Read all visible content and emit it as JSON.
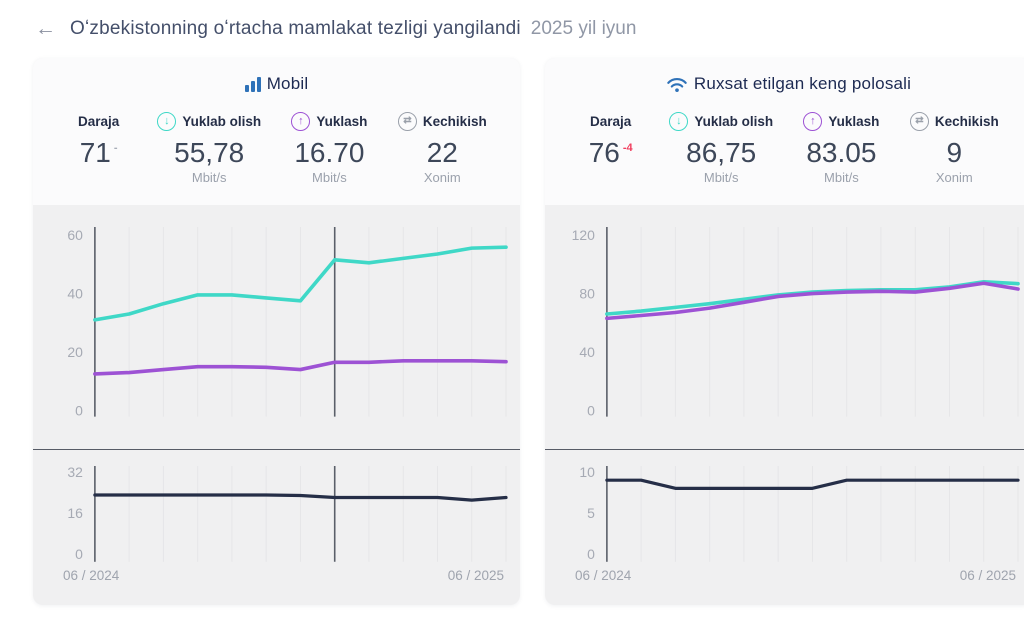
{
  "header": {
    "back_icon": "←",
    "title": "Oʻzbekistonning oʻrtacha mamlakat tezligi yangilandi",
    "date": "2025 yil iyun"
  },
  "colors": {
    "download": "#3fd8c7",
    "upload": "#9d52d4",
    "latency": "#252e47",
    "accent_blue": "#2f72b8",
    "delta_negative": "#f03e5e",
    "delta_neutral": "#a7adb8",
    "marker_line": "#5a5f69",
    "gridline": "#e6e6e8",
    "tick_text": "#a6aab4"
  },
  "icons": {
    "download_glyph": "↓",
    "upload_glyph": "↑",
    "latency_glyph": "⇄"
  },
  "cards": [
    {
      "title": "Mobil",
      "stats": [
        {
          "label": "Daraja",
          "value": "71",
          "delta": "-",
          "unit": ""
        },
        {
          "label": "Yuklab olish",
          "value": "55,78",
          "unit": "Mbit/s"
        },
        {
          "label": "Yuklash",
          "value": "16.70",
          "unit": "Mbit/s"
        },
        {
          "label": "Kechikish",
          "value": "22",
          "unit": "Xonim"
        }
      ],
      "x_start": "06 / 2024",
      "x_end": "06 / 2025"
    },
    {
      "title": "Ruxsat etilgan keng polosali",
      "stats": [
        {
          "label": "Daraja",
          "value": "76",
          "delta": "-4",
          "unit": ""
        },
        {
          "label": "Yuklab olish",
          "value": "86,75",
          "unit": "Mbit/s"
        },
        {
          "label": "Yuklash",
          "value": "83.05",
          "unit": "Mbit/s"
        },
        {
          "label": "Kechikish",
          "value": "9",
          "unit": "Xonim"
        }
      ],
      "x_start": "06 / 2024",
      "x_end": "06 / 2025"
    }
  ],
  "chart_data": [
    {
      "type": "line",
      "card": "Mobil",
      "x_start_label": "06 / 2024",
      "x_end_label": "06 / 2025",
      "months": 13,
      "panels": [
        {
          "name": "speed",
          "ylim": [
            0,
            60
          ],
          "yticks": [
            60,
            40,
            20,
            0
          ],
          "markers": [
            0,
            7
          ],
          "series": [
            {
              "name": "Yuklab olish (Mbit/s)",
              "color": "download",
              "values": [
                31,
                33,
                36.5,
                39.5,
                39.5,
                38.5,
                37.5,
                51.5,
                50.5,
                52,
                53.5,
                55.5,
                55.8
              ]
            },
            {
              "name": "Yuklash (Mbit/s)",
              "color": "upload",
              "values": [
                12.5,
                13,
                14,
                15,
                15,
                14.8,
                14,
                16.5,
                16.5,
                17,
                17,
                17,
                16.7
              ]
            }
          ]
        },
        {
          "name": "latency",
          "ylim": [
            0,
            32
          ],
          "yticks": [
            32,
            16,
            0
          ],
          "markers": [
            0,
            7
          ],
          "series": [
            {
              "name": "Kechikish (Xonim)",
              "color": "latency",
              "values": [
                23,
                23,
                23,
                23,
                23,
                23,
                22.8,
                22,
                22,
                22,
                22,
                21,
                22
              ]
            }
          ]
        }
      ]
    },
    {
      "type": "line",
      "card": "Ruxsat etilgan keng polosali",
      "x_start_label": "06 / 2024",
      "x_end_label": "06 / 2025",
      "months": 13,
      "panels": [
        {
          "name": "speed",
          "ylim": [
            0,
            120
          ],
          "yticks": [
            120,
            80,
            40,
            0
          ],
          "markers": [
            0
          ],
          "series": [
            {
              "name": "Yuklab olish (Mbit/s)",
              "color": "download",
              "values": [
                66,
                68,
                70.5,
                73,
                76,
                79,
                81,
                82,
                82.5,
                82.5,
                84.5,
                88,
                86.75
              ]
            },
            {
              "name": "Yuklash (Mbit/s)",
              "color": "upload",
              "values": [
                63,
                65,
                67,
                70,
                74,
                78,
                80,
                81,
                81.5,
                81,
                83.5,
                87,
                83.05
              ]
            }
          ]
        },
        {
          "name": "latency",
          "ylim": [
            0,
            10
          ],
          "yticks": [
            10,
            5,
            0
          ],
          "markers": [
            0
          ],
          "series": [
            {
              "name": "Kechikish (Xonim)",
              "color": "latency",
              "values": [
                9,
                9,
                8,
                8,
                8,
                8,
                8,
                9,
                9,
                9,
                9,
                9,
                9
              ]
            }
          ]
        }
      ]
    }
  ]
}
